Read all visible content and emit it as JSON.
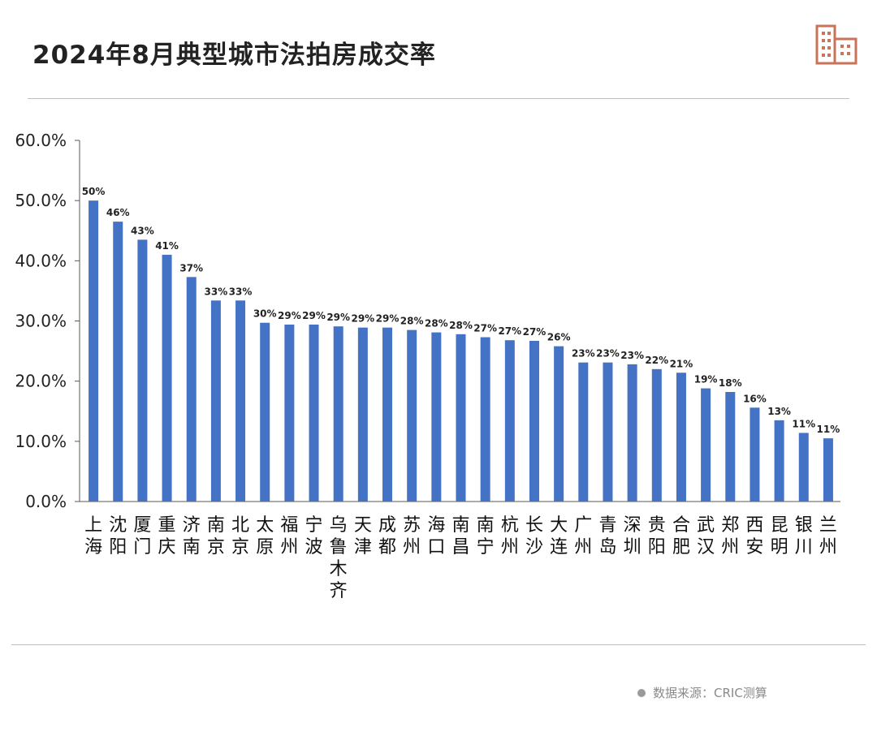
{
  "header": {
    "title": "2024年8月典型城市法拍房成交率",
    "logo_icon": "building-icon",
    "accent_color": "#c8735a"
  },
  "footer": {
    "source_text": "数据来源：CRIC测算"
  },
  "chart_data": {
    "type": "bar",
    "title": "2024年8月典型城市法拍房成交率",
    "xlabel": "",
    "ylabel": "",
    "ylim": [
      0,
      60
    ],
    "yticks": [
      "0.0%",
      "10.0%",
      "20.0%",
      "30.0%",
      "40.0%",
      "50.0%",
      "60.0%"
    ],
    "grid": false,
    "bar_color": "#4472c4",
    "categories": [
      "上海",
      "沈阳",
      "厦门",
      "重庆",
      "济南",
      "南京",
      "北京",
      "太原",
      "福州",
      "宁波",
      "乌鲁木齐",
      "天津",
      "成都",
      "苏州",
      "海口",
      "南昌",
      "南宁",
      "杭州",
      "长沙",
      "大连",
      "广州",
      "青岛",
      "深圳",
      "贵阳",
      "合肥",
      "武汉",
      "郑州",
      "西安",
      "昆明",
      "银川",
      "兰州"
    ],
    "values": [
      50.0,
      46.5,
      43.5,
      41.0,
      37.3,
      33.4,
      33.4,
      29.7,
      29.4,
      29.4,
      29.1,
      28.9,
      28.9,
      28.5,
      28.1,
      27.8,
      27.3,
      26.8,
      26.7,
      25.8,
      23.1,
      23.1,
      22.8,
      22.0,
      21.4,
      18.8,
      18.2,
      15.6,
      13.5,
      11.4,
      10.5
    ],
    "data_labels": [
      "50%",
      "46%",
      "43%",
      "41%",
      "37%",
      "33%",
      "33%",
      "30%",
      "29%",
      "29%",
      "29%",
      "29%",
      "29%",
      "28%",
      "28%",
      "28%",
      "27%",
      "27%",
      "27%",
      "26%",
      "23%",
      "23%",
      "23%",
      "22%",
      "21%",
      "19%",
      "18%",
      "16%",
      "13%",
      "11%",
      "11%"
    ]
  }
}
